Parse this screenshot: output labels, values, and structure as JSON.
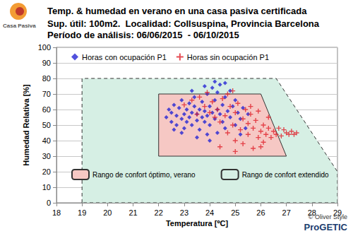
{
  "chart_data": {
    "type": "scatter",
    "title": "Temp. & humedad en verano en una casa pasiva certificada",
    "subtitle": [
      "Sup. útil: 100m2.  Localidad: Collsuspina, Provincia Barcelona",
      "Período de análisis: 06/06/2015  - 06/10/2015"
    ],
    "x_label": "Temperatura [ºC]",
    "y_label": "Humedad Relativa [%]",
    "xlim": [
      18,
      29
    ],
    "xticks": [
      18,
      19,
      20,
      21,
      22,
      23,
      24,
      25,
      26,
      27,
      28,
      29
    ],
    "ylim": [
      0,
      100
    ],
    "yticks": [
      0,
      10,
      20,
      30,
      40,
      50,
      60,
      70,
      80,
      90,
      100
    ],
    "grid": true,
    "legend": "top-left",
    "logo": "Casa Pasiva",
    "credit": "© Oliver Style",
    "brand": "ProGETIC",
    "regions": [
      {
        "name": "Rango de confort extendido",
        "color": "#d6efe4",
        "line_style": "dashed",
        "points": [
          [
            19,
            0
          ],
          [
            19,
            80
          ],
          [
            26.6,
            80
          ],
          [
            29,
            20
          ],
          [
            29,
            0
          ]
        ]
      },
      {
        "name": "Rango de confort óptimo, verano",
        "color": "#f6c8c4",
        "line_style": "solid",
        "points": [
          [
            22,
            30
          ],
          [
            22,
            70
          ],
          [
            26,
            70
          ],
          [
            27,
            30
          ]
        ]
      }
    ],
    "series": [
      {
        "name": "Horas con ocupación P1",
        "color": "#2626d4",
        "marker": "diamond",
        "values": [
          [
            22.3,
            55
          ],
          [
            22.4,
            60
          ],
          [
            22.5,
            52
          ],
          [
            22.5,
            58
          ],
          [
            22.6,
            63
          ],
          [
            22.7,
            50
          ],
          [
            22.7,
            56
          ],
          [
            22.8,
            61
          ],
          [
            22.9,
            54
          ],
          [
            22.9,
            66
          ],
          [
            23.0,
            48
          ],
          [
            23.0,
            57
          ],
          [
            23.1,
            60
          ],
          [
            23.1,
            52
          ],
          [
            23.2,
            64
          ],
          [
            23.2,
            55
          ],
          [
            23.3,
            50
          ],
          [
            23.3,
            58
          ],
          [
            23.4,
            62
          ],
          [
            23.4,
            68
          ],
          [
            23.5,
            53
          ],
          [
            23.5,
            57
          ],
          [
            23.6,
            60
          ],
          [
            23.6,
            47
          ],
          [
            23.7,
            55
          ],
          [
            23.7,
            65
          ],
          [
            23.8,
            59
          ],
          [
            23.8,
            52
          ],
          [
            23.9,
            70
          ],
          [
            23.9,
            56
          ],
          [
            24.0,
            62
          ],
          [
            24.0,
            50
          ],
          [
            24.1,
            58
          ],
          [
            24.1,
            74
          ],
          [
            24.2,
            54
          ],
          [
            24.2,
            66
          ],
          [
            24.3,
            60
          ],
          [
            24.3,
            45
          ],
          [
            24.4,
            76
          ],
          [
            24.4,
            57
          ],
          [
            24.5,
            63
          ],
          [
            24.5,
            52
          ],
          [
            24.6,
            68
          ],
          [
            24.6,
            48
          ],
          [
            24.7,
            59
          ],
          [
            24.8,
            55
          ],
          [
            24.8,
            72
          ],
          [
            24.9,
            62
          ],
          [
            25.0,
            50
          ],
          [
            25.0,
            66
          ],
          [
            25.1,
            58
          ],
          [
            25.2,
            54
          ],
          [
            25.3,
            61
          ],
          [
            25.4,
            48
          ],
          [
            25.5,
            57
          ],
          [
            23.5,
            42
          ],
          [
            23.9,
            44
          ],
          [
            24.2,
            78
          ],
          [
            24.6,
            77
          ],
          [
            23.3,
            72
          ],
          [
            22.9,
            45
          ],
          [
            24.0,
            40
          ],
          [
            24.3,
            71
          ],
          [
            22.6,
            47
          ],
          [
            25.2,
            44
          ],
          [
            23.8,
            75
          ]
        ]
      },
      {
        "name": "Horas sin ocupación P1",
        "color": "#e0202a",
        "marker": "plus",
        "values": [
          [
            23.0,
            63
          ],
          [
            23.3,
            66
          ],
          [
            23.6,
            68
          ],
          [
            23.9,
            71
          ],
          [
            24.1,
            65
          ],
          [
            24.3,
            60
          ],
          [
            24.4,
            52
          ],
          [
            24.5,
            67
          ],
          [
            24.6,
            56
          ],
          [
            24.7,
            45
          ],
          [
            24.8,
            62
          ],
          [
            24.9,
            50
          ],
          [
            25.0,
            58
          ],
          [
            25.0,
            40
          ],
          [
            25.1,
            64
          ],
          [
            25.2,
            47
          ],
          [
            25.3,
            54
          ],
          [
            25.3,
            38
          ],
          [
            25.4,
            60
          ],
          [
            25.5,
            44
          ],
          [
            25.5,
            51
          ],
          [
            25.6,
            57
          ],
          [
            25.7,
            35
          ],
          [
            25.7,
            48
          ],
          [
            25.8,
            53
          ],
          [
            25.9,
            42
          ],
          [
            25.9,
            59
          ],
          [
            26.0,
            46
          ],
          [
            26.1,
            50
          ],
          [
            26.1,
            39
          ],
          [
            26.2,
            44
          ],
          [
            26.3,
            48
          ],
          [
            26.4,
            42
          ],
          [
            26.5,
            46
          ],
          [
            26.6,
            44
          ],
          [
            26.7,
            48
          ],
          [
            26.8,
            43
          ],
          [
            26.9,
            47
          ],
          [
            27.0,
            45
          ],
          [
            27.1,
            44
          ],
          [
            27.2,
            46
          ],
          [
            27.3,
            44
          ],
          [
            27.4,
            45
          ],
          [
            24.2,
            55
          ],
          [
            24.0,
            58
          ],
          [
            23.8,
            62
          ],
          [
            25.6,
            62
          ],
          [
            24.7,
            70
          ],
          [
            26.3,
            55
          ],
          [
            25.0,
            33
          ],
          [
            24.4,
            36
          ],
          [
            23.5,
            57
          ],
          [
            26.0,
            36
          ],
          [
            24.9,
            72
          ]
        ]
      }
    ]
  }
}
